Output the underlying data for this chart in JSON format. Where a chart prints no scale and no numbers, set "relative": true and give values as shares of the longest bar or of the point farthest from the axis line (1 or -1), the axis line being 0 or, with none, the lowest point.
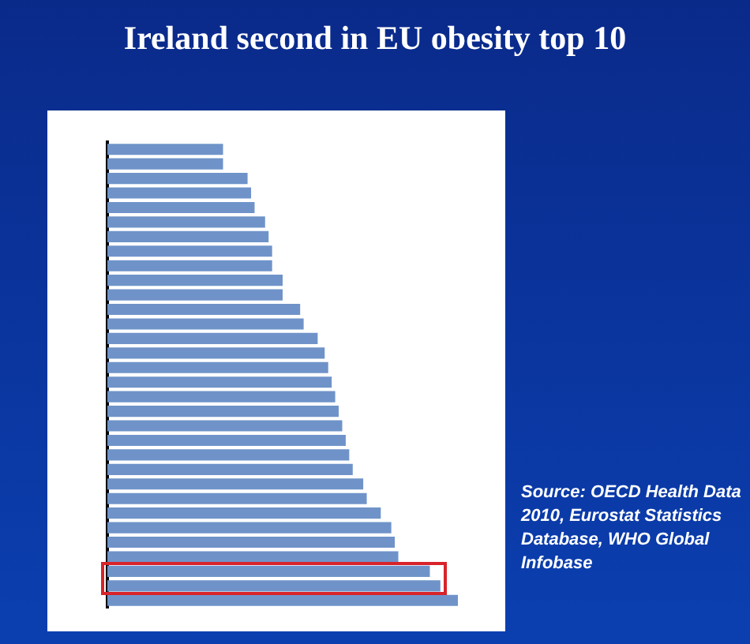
{
  "chart_data": {
    "type": "bar",
    "title": "Ireland second in EU obesity top 10",
    "orientation": "horizontal",
    "relative": true,
    "color": "#6f93c9",
    "categories": [
      null,
      null,
      null,
      null,
      null,
      null,
      null,
      null,
      null,
      null,
      null,
      null,
      null,
      null,
      null,
      null,
      null,
      null,
      null,
      null,
      null,
      null,
      null,
      null,
      null,
      null,
      null,
      null,
      null,
      null,
      null,
      null
    ],
    "values": [
      0.33,
      0.33,
      0.4,
      0.41,
      0.42,
      0.45,
      0.46,
      0.47,
      0.47,
      0.5,
      0.5,
      0.55,
      0.56,
      0.6,
      0.62,
      0.63,
      0.64,
      0.65,
      0.66,
      0.67,
      0.68,
      0.69,
      0.7,
      0.73,
      0.74,
      0.78,
      0.81,
      0.82,
      0.83,
      0.92,
      0.95,
      1
    ],
    "annotations": [
      "Source: OECD Health Data 2010, Eurostat Statistics Database, WHO Global Infobase"
    ]
  }
}
